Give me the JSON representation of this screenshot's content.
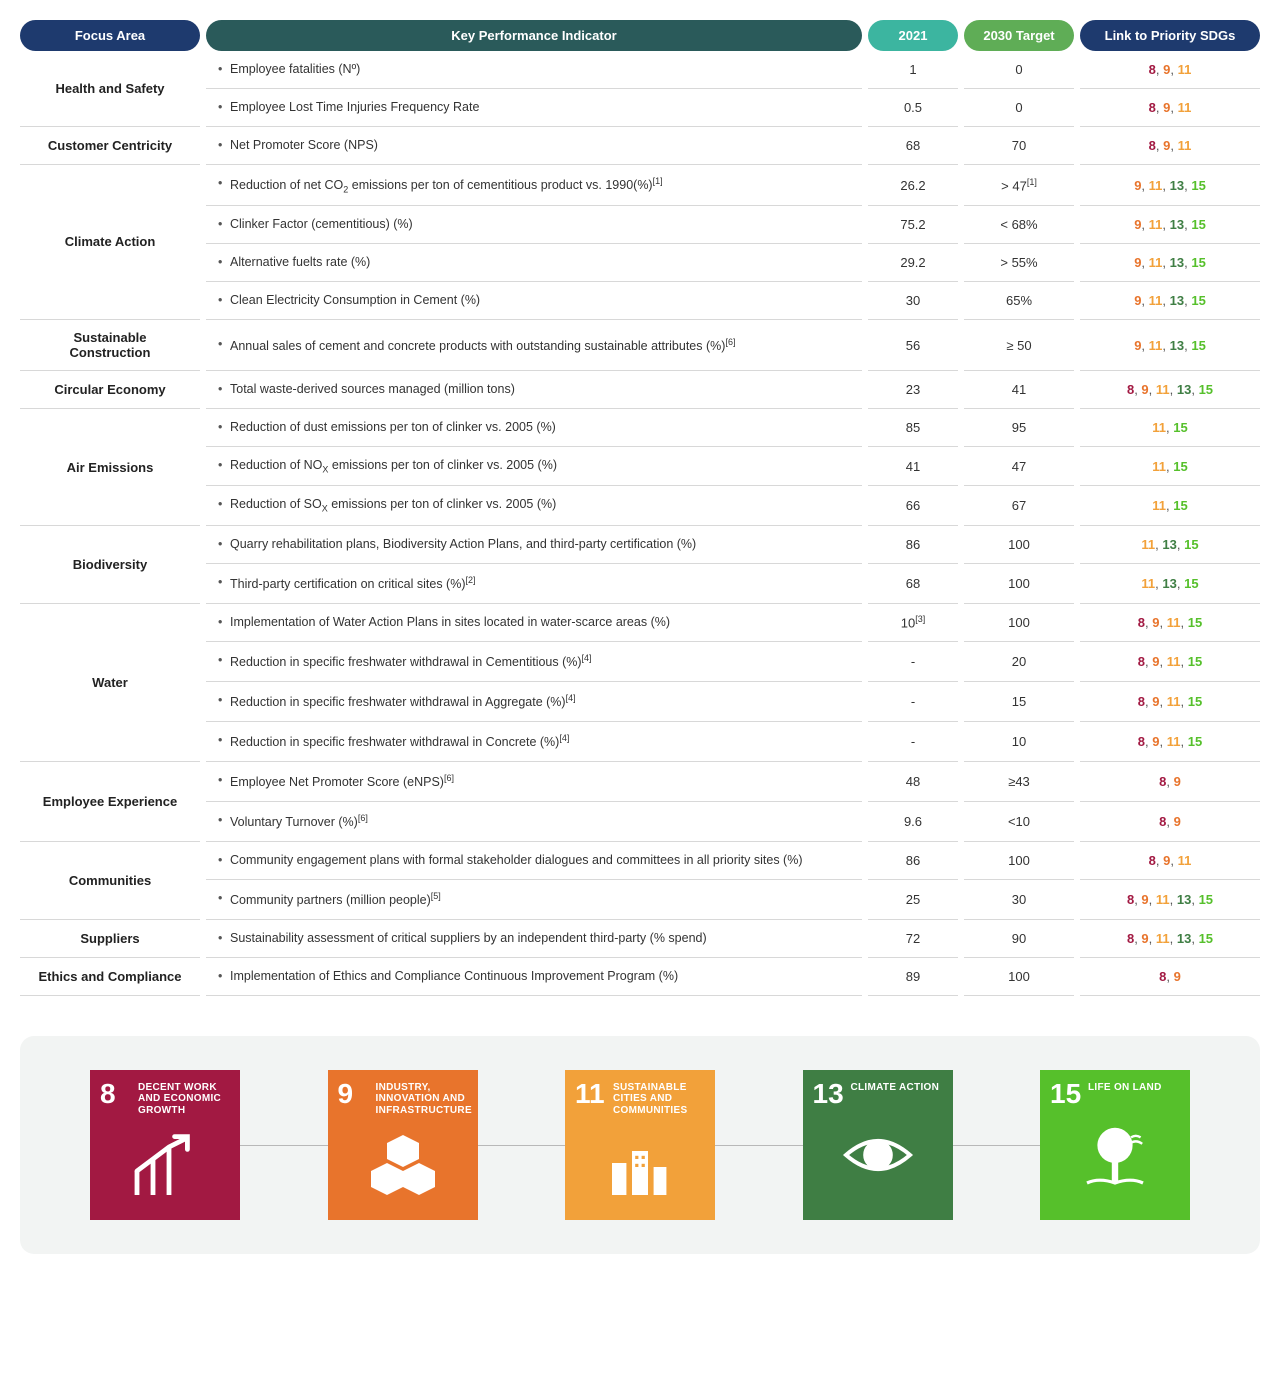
{
  "headers": {
    "focus_area": "Focus Area",
    "kpi": "Key Performance Indicator",
    "y2021": "2021",
    "target": "2030 Target",
    "sdg": "Link to Priority SDGs"
  },
  "sdg_colors": {
    "8": "#a21942",
    "9": "#e8742c",
    "11": "#f2a13a",
    "13": "#3f7e44",
    "15": "#56c02b"
  },
  "sdg_cards": [
    {
      "num": "8",
      "title": "DECENT WORK AND ECONOMIC GROWTH",
      "bg": "#a21942",
      "icon": "growth"
    },
    {
      "num": "9",
      "title": "INDUSTRY, INNOVATION AND INFRASTRUCTURE",
      "bg": "#e8742c",
      "icon": "cubes"
    },
    {
      "num": "11",
      "title": "SUSTAINABLE CITIES AND COMMUNITIES",
      "bg": "#f2a13a",
      "icon": "city"
    },
    {
      "num": "13",
      "title": "CLIMATE ACTION",
      "bg": "#3f7e44",
      "icon": "eye"
    },
    {
      "num": "15",
      "title": "LIFE ON LAND",
      "bg": "#56c02b",
      "icon": "tree"
    }
  ],
  "rows": [
    {
      "focus": "Health and Safety",
      "rowspan": 2,
      "kpi_html": "Employee fatalities (Nº)",
      "y2021": "1",
      "target": "0",
      "sdgs": [
        "8",
        "9",
        "11"
      ]
    },
    {
      "kpi_html": "Employee Lost Time Injuries Frequency Rate",
      "y2021": "0.5",
      "target": "0",
      "sdgs": [
        "8",
        "9",
        "11"
      ]
    },
    {
      "focus": "Customer Centricity",
      "rowspan": 1,
      "kpi_html": "Net Promoter Score (NPS)",
      "y2021": "68",
      "target": "70",
      "sdgs": [
        "8",
        "9",
        "11"
      ]
    },
    {
      "focus": "Climate Action",
      "rowspan": 4,
      "kpi_html": "Reduction of net CO<sub>2</sub> emissions per ton of cementitious product vs. 1990(%)<sup>[1]</sup>",
      "y2021": "26.2",
      "target": "> 47<sup>[1]</sup>",
      "sdgs": [
        "9",
        "11",
        "13",
        "15"
      ]
    },
    {
      "kpi_html": "Clinker Factor (cementitious) (%)",
      "y2021": "75.2",
      "target": "< 68%",
      "sdgs": [
        "9",
        "11",
        "13",
        "15"
      ]
    },
    {
      "kpi_html": "Alternative fuelts rate (%)",
      "y2021": "29.2",
      "target": "> 55%",
      "sdgs": [
        "9",
        "11",
        "13",
        "15"
      ]
    },
    {
      "kpi_html": "Clean Electricity Consumption in Cement (%)",
      "y2021": "30",
      "target": "65%",
      "sdgs": [
        "9",
        "11",
        "13",
        "15"
      ]
    },
    {
      "focus": "Sustainable Construction",
      "rowspan": 1,
      "kpi_html": "Annual sales of cement and concrete products with outstanding sustainable attributes (%)<sup>[6]</sup>",
      "y2021": "56",
      "target": "≥ 50",
      "sdgs": [
        "9",
        "11",
        "13",
        "15"
      ]
    },
    {
      "focus": "Circular Economy",
      "rowspan": 1,
      "kpi_html": "Total waste-derived sources managed (million tons)",
      "y2021": "23",
      "target": "41",
      "sdgs": [
        "8",
        "9",
        "11",
        "13",
        "15"
      ]
    },
    {
      "focus": "Air Emissions",
      "rowspan": 3,
      "kpi_html": "Reduction of dust emissions per ton of clinker vs. 2005 (%)",
      "y2021": "85",
      "target": "95",
      "sdgs": [
        "11",
        "15"
      ]
    },
    {
      "kpi_html": "Reduction of NO<sub>X</sub> emissions per ton of clinker vs. 2005 (%)",
      "y2021": "41",
      "target": "47",
      "sdgs": [
        "11",
        "15"
      ]
    },
    {
      "kpi_html": "Reduction of SO<sub>X</sub> emissions per ton of clinker vs. 2005 (%)",
      "y2021": "66",
      "target": "67",
      "sdgs": [
        "11",
        "15"
      ]
    },
    {
      "focus": "Biodiversity",
      "rowspan": 2,
      "kpi_html": "Quarry rehabilitation plans, Biodiversity Action Plans, and third-party certification (%)",
      "y2021": "86",
      "target": "100",
      "sdgs": [
        "11",
        "13",
        "15"
      ]
    },
    {
      "kpi_html": "Third-party certification on critical sites (%)<sup>[2]</sup>",
      "y2021": "68",
      "target": "100",
      "sdgs": [
        "11",
        "13",
        "15"
      ]
    },
    {
      "focus": "Water",
      "rowspan": 4,
      "kpi_html": "Implementation of Water Action Plans in sites located in water-scarce areas (%)",
      "y2021": "10<sup>[3]</sup>",
      "target": "100",
      "sdgs": [
        "8",
        "9",
        "11",
        "15"
      ]
    },
    {
      "kpi_html": "Reduction in specific freshwater withdrawal in Cementitious (%)<sup>[4]</sup>",
      "y2021": "-",
      "target": "20",
      "sdgs": [
        "8",
        "9",
        "11",
        "15"
      ]
    },
    {
      "kpi_html": "Reduction in specific freshwater withdrawal in Aggregate (%)<sup>[4]</sup>",
      "y2021": "-",
      "target": "15",
      "sdgs": [
        "8",
        "9",
        "11",
        "15"
      ]
    },
    {
      "kpi_html": "Reduction in specific freshwater withdrawal in Concrete (%)<sup>[4]</sup>",
      "y2021": "-",
      "target": "10",
      "sdgs": [
        "8",
        "9",
        "11",
        "15"
      ]
    },
    {
      "focus": "Employee Experience",
      "rowspan": 2,
      "kpi_html": "Employee Net Promoter Score (eNPS)<sup>[6]</sup>",
      "y2021": "48",
      "target": "≥43",
      "sdgs": [
        "8",
        "9"
      ]
    },
    {
      "kpi_html": "Voluntary Turnover (%)<sup>[6]</sup>",
      "y2021": "9.6",
      "target": "<10",
      "sdgs": [
        "8",
        "9"
      ]
    },
    {
      "focus": "Communities",
      "rowspan": 2,
      "kpi_html": "Community engagement plans with formal stakeholder dialogues and committees in all priority sites  (%)",
      "y2021": "86",
      "target": "100",
      "sdgs": [
        "8",
        "9",
        "11"
      ]
    },
    {
      "kpi_html": "Community partners (million people)<sup>[5]</sup>",
      "y2021": "25",
      "target": "30",
      "sdgs": [
        "8",
        "9",
        "11",
        "13",
        "15"
      ]
    },
    {
      "focus": "Suppliers",
      "rowspan": 1,
      "kpi_html": "Sustainability assessment of critical suppliers by an independent third-party (% spend)",
      "y2021": "72",
      "target": "90",
      "sdgs": [
        "8",
        "9",
        "11",
        "13",
        "15"
      ]
    },
    {
      "focus": "Ethics and Compliance",
      "rowspan": 1,
      "kpi_html": "Implementation of Ethics and Compliance Continuous Improvement Program (%)",
      "y2021": "89",
      "target": "100",
      "sdgs": [
        "8",
        "9"
      ]
    }
  ]
}
